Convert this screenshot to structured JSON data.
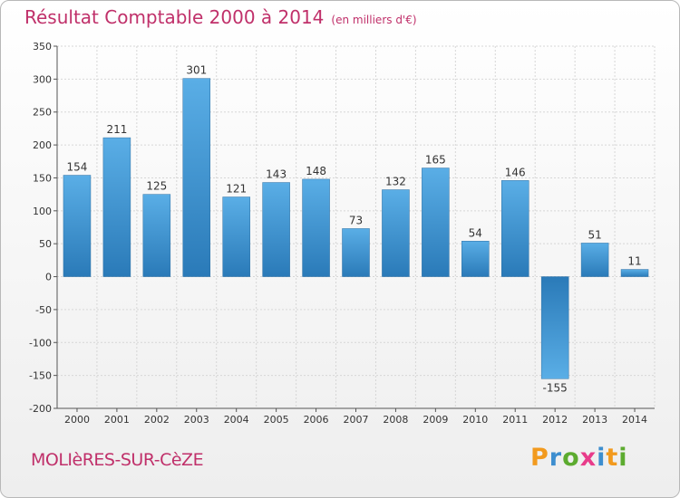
{
  "header": {
    "title": "Résultat Comptable 2000 à 2014",
    "subtitle": "(en milliers d'€)"
  },
  "footer": {
    "town": "MOLIèRES-SUR-CèZE",
    "logo_text": "Proxiti",
    "logo_letters": [
      "P",
      "r",
      "o",
      "x",
      "i",
      "t",
      "i"
    ],
    "logo_colors": [
      "#f29a1e",
      "#3d8ecf",
      "#5cab2f",
      "#e83c8a",
      "#3d8ecf",
      "#f29a1e",
      "#5cab2f"
    ]
  },
  "chart_data": {
    "type": "bar",
    "title": "Résultat Comptable 2000 à 2014",
    "subtitle": "(en milliers d'€)",
    "xlabel": "",
    "ylabel": "",
    "categories": [
      "2000",
      "2001",
      "2002",
      "2003",
      "2004",
      "2005",
      "2006",
      "2007",
      "2008",
      "2009",
      "2010",
      "2011",
      "2012",
      "2013",
      "2014"
    ],
    "values": [
      154,
      211,
      125,
      301,
      121,
      143,
      148,
      73,
      132,
      165,
      54,
      146,
      -155,
      51,
      11
    ],
    "data_labels": [
      "154",
      "211",
      "125",
      "301",
      "121",
      "143",
      "148",
      "73",
      "132",
      "165",
      "54",
      "146",
      "-155",
      "51",
      "11"
    ],
    "ylim": [
      -200,
      350
    ],
    "yticks": [
      -200,
      -150,
      -100,
      -50,
      0,
      50,
      100,
      150,
      200,
      250,
      300,
      350
    ],
    "ytick_labels": [
      "-200",
      "-150",
      "-100",
      "-50",
      "0",
      "50",
      "100",
      "150",
      "200",
      "250",
      "300",
      "350"
    ],
    "grid": true,
    "bar_color_light": "#5aaee6",
    "bar_color_dark": "#2a7ab8"
  }
}
